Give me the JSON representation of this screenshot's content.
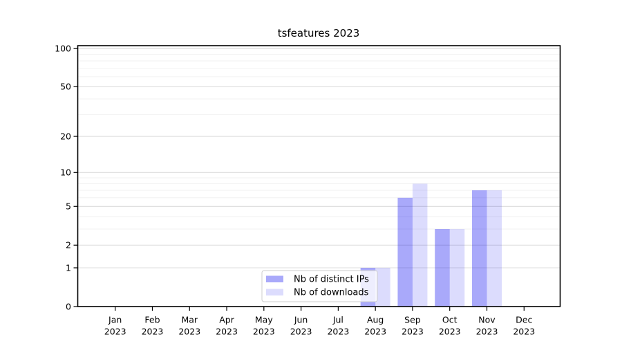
{
  "chart_data": {
    "type": "bar",
    "title": "tsfeatures 2023",
    "year_label": "2023",
    "months": [
      "Jan",
      "Feb",
      "Mar",
      "Apr",
      "May",
      "Jun",
      "Jul",
      "Aug",
      "Sep",
      "Oct",
      "Nov",
      "Dec"
    ],
    "categories": [
      "Jan 2023",
      "Feb 2023",
      "Mar 2023",
      "Apr 2023",
      "May 2023",
      "Jun 2023",
      "Jul 2023",
      "Aug 2023",
      "Sep 2023",
      "Oct 2023",
      "Nov 2023",
      "Dec 2023"
    ],
    "series": [
      {
        "name": "Nb of distinct IPs",
        "color": "rgba(10,10,240,0.35)",
        "legend_color": "#a9a9fa",
        "values": [
          0,
          0,
          0,
          0,
          0,
          0,
          0,
          1,
          6,
          3,
          7,
          0
        ]
      },
      {
        "name": "Nb of downloads",
        "color": "rgba(10,10,240,0.14)",
        "legend_color": "#dcdcfd",
        "values": [
          0,
          0,
          0,
          0,
          0,
          0,
          0,
          1,
          8,
          3,
          7,
          0
        ]
      }
    ],
    "xlabel": "",
    "ylabel": "",
    "yscale": "log1p (y position proportional to log10(1+value))",
    "ylim": [
      0,
      105
    ],
    "ytick_values": [
      0,
      1,
      2,
      5,
      10,
      20,
      50,
      100
    ],
    "ytick_labels": [
      "0",
      "1",
      "2",
      "5",
      "10",
      "20",
      "50",
      "100"
    ],
    "minor_ytick_values": [
      3,
      4,
      6,
      7,
      8,
      9,
      30,
      40,
      60,
      70,
      80,
      90
    ],
    "grid": "horizontal major+minor, no vertical",
    "legend_position": "bottom-center inside axes",
    "colors": {
      "background": "#ffffff",
      "spine": "#000000",
      "major_grid": "#dcdcdc",
      "minor_grid": "#f2f2f2",
      "text": "#000000",
      "legend_bg": "rgba(255,255,255,0.8)",
      "legend_border": "#cccccc"
    }
  }
}
